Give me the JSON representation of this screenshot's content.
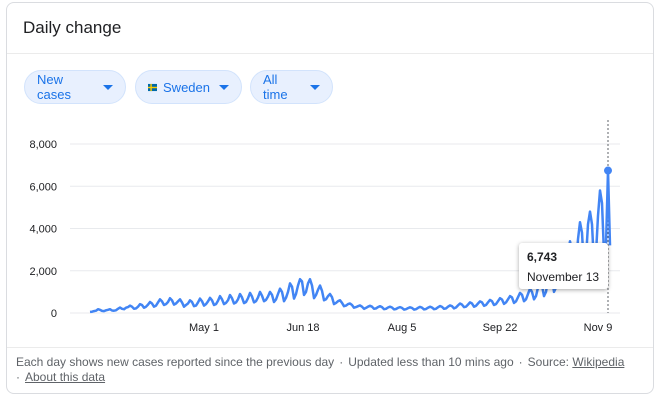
{
  "card": {
    "title": "Daily change"
  },
  "filters": [
    {
      "label": "New cases"
    },
    {
      "label": "Sweden",
      "flag": "sweden-flag-icon"
    },
    {
      "label": "All time"
    }
  ],
  "colors": {
    "line": "#4285f4",
    "chip_bg": "#e8f0fe",
    "chip_text": "#1a73e8",
    "grid": "#e8eaed"
  },
  "tooltip": {
    "value": "6,743",
    "date": "November 13"
  },
  "footer": {
    "note": "Each day shows new cases reported since the previous day",
    "updated": "Updated less than 10 mins ago",
    "source_label": "Source:",
    "source_link": "Wikipedia",
    "about_link": "About this data"
  },
  "chart_data": {
    "type": "line",
    "y_ticks": [
      "8,000",
      "6,000",
      "4,000",
      "2,000",
      "0"
    ],
    "x_ticks": [
      "May 1",
      "Jun 18",
      "Aug 5",
      "Sep 22",
      "Nov 9"
    ],
    "ylim": [
      0,
      8000
    ],
    "series": [
      {
        "values": [
          50,
          60,
          90,
          110,
          180,
          150,
          100,
          90,
          130,
          150,
          180,
          120,
          110,
          130,
          200,
          260,
          200,
          180,
          250,
          280,
          350,
          300,
          200,
          220,
          300,
          420,
          380,
          250,
          300,
          400,
          520,
          450,
          300,
          350,
          500,
          650,
          550,
          380,
          420,
          520,
          700,
          600,
          400,
          450,
          550,
          650,
          500,
          300,
          380,
          450,
          600,
          520,
          320,
          350,
          500,
          680,
          560,
          350,
          420,
          550,
          720,
          600,
          380,
          420,
          580,
          800,
          650,
          420,
          480,
          600,
          850,
          700,
          450,
          500,
          650,
          900,
          740,
          470,
          520,
          700,
          950,
          780,
          500,
          560,
          740,
          1000,
          820,
          560,
          620,
          780,
          1000,
          860,
          520,
          640,
          900,
          1150,
          1000,
          560,
          720,
          1000,
          1400,
          1250,
          680,
          900,
          1300,
          1600,
          1500,
          850,
          1000,
          1400,
          1600,
          1300,
          700,
          850,
          1100,
          1300,
          1050,
          600,
          650,
          800,
          900,
          750,
          420,
          480,
          560,
          600,
          480,
          320,
          350,
          420,
          450,
          380,
          250,
          280,
          320,
          360,
          300,
          200,
          240,
          300,
          340,
          300,
          200,
          220,
          280,
          320,
          280,
          180,
          200,
          260,
          300,
          260,
          170,
          190,
          240,
          280,
          240,
          160,
          180,
          230,
          270,
          240,
          160,
          180,
          240,
          290,
          250,
          170,
          190,
          250,
          300,
          260,
          180,
          200,
          270,
          330,
          290,
          200,
          220,
          300,
          360,
          320,
          220,
          260,
          360,
          450,
          400,
          280,
          300,
          400,
          500,
          450,
          300,
          340,
          450,
          550,
          500,
          340,
          380,
          500,
          620,
          560,
          380,
          420,
          560,
          700,
          640,
          430,
          500,
          650,
          800,
          740,
          480,
          550,
          750,
          950,
          860,
          560,
          650,
          900,
          1150,
          1000,
          650,
          800,
          1200,
          1500,
          1300,
          800,
          1000,
          1600,
          2000,
          1700,
          1000,
          1200,
          2000,
          2600,
          2200,
          1300,
          1600,
          2800,
          3400,
          2900,
          1600,
          2000,
          3500,
          4300,
          3800,
          2100,
          2600,
          4200,
          4800,
          4200,
          2300,
          2800,
          4600,
          5800,
          5200,
          2800,
          3200,
          6743,
          3200
        ]
      }
    ],
    "highlight": {
      "value": 6743,
      "label": "November 13"
    },
    "grid": true
  }
}
